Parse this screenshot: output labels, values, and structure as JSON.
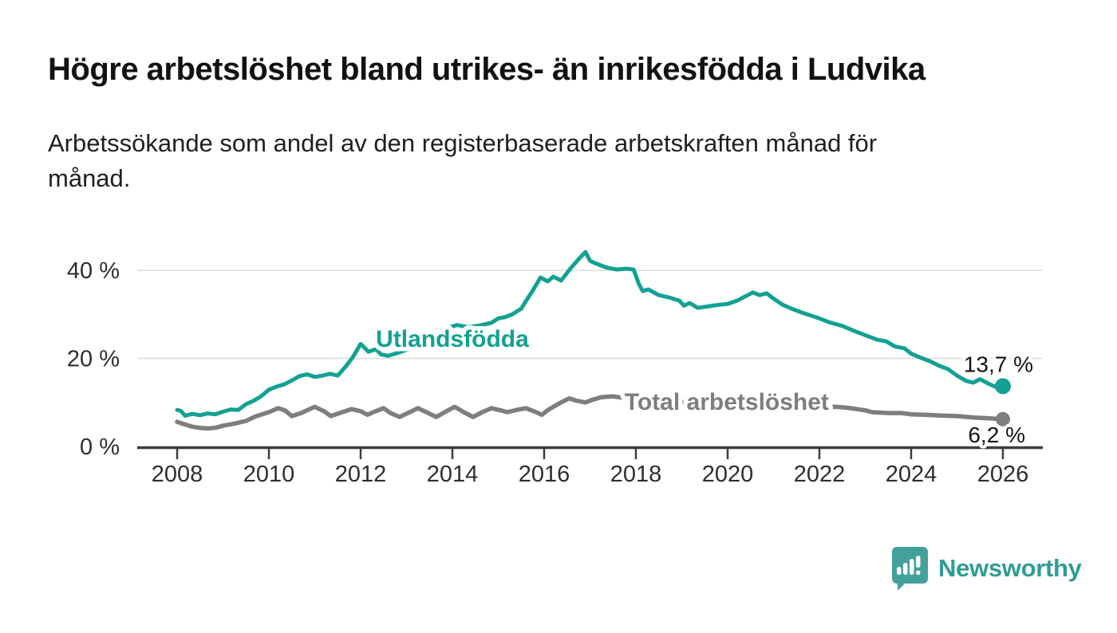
{
  "header": {
    "title": "Högre arbetslöshet bland utrikes- än inrikesfödda i Ludvika",
    "subtitle_line1": "Arbetssökande som andel av den registerbaserade arbetskraften månad för",
    "subtitle_line2": "månad."
  },
  "branding": {
    "name": "Newsworthy",
    "logo_icon": "newsworthy-speech-bubble-bar-chart-icon",
    "logo_color": "#44a09b",
    "text_color": "#2f9c95"
  },
  "chart_data": {
    "type": "line",
    "title": "Högre arbetslöshet bland utrikes- än inrikesfödda i Ludvika",
    "subtitle": "Arbetssökande som andel av den registerbaserade arbetskraften månad för månad.",
    "grid": "horizontal",
    "gridline_color": "#dcdcdc",
    "axis_color": "#3d3d3d",
    "tick_label_color": "#2e2e2e",
    "x_axis": {
      "range": [
        2007.13,
        2026.87
      ],
      "ticks": [
        2008,
        2010,
        2012,
        2014,
        2016,
        2018,
        2020,
        2022,
        2024,
        2026
      ]
    },
    "y_axis": {
      "range": [
        0,
        45.3
      ],
      "unit": "%",
      "ticks": [
        {
          "value": 0,
          "label": "0 %"
        },
        {
          "value": 20,
          "label": "20 %"
        },
        {
          "value": 40,
          "label": "40 %"
        }
      ]
    },
    "series": [
      {
        "name": "Utlandsfödda",
        "color": "#12a192",
        "stroke_width": 5,
        "label_at": [
          2014.0,
          24.6
        ],
        "end_label": "13,7 %",
        "end_value": 13.7,
        "end_label_side": "above",
        "points": [
          [
            2008.0,
            8.3
          ],
          [
            2008.08,
            8.1
          ],
          [
            2008.17,
            7.0
          ],
          [
            2008.33,
            7.4
          ],
          [
            2008.5,
            7.1
          ],
          [
            2008.67,
            7.5
          ],
          [
            2008.83,
            7.3
          ],
          [
            2009.0,
            7.9
          ],
          [
            2009.17,
            8.4
          ],
          [
            2009.33,
            8.3
          ],
          [
            2009.5,
            9.6
          ],
          [
            2009.67,
            10.4
          ],
          [
            2009.83,
            11.4
          ],
          [
            2010.0,
            12.9
          ],
          [
            2010.17,
            13.6
          ],
          [
            2010.33,
            14.1
          ],
          [
            2010.5,
            15.0
          ],
          [
            2010.67,
            16.0
          ],
          [
            2010.83,
            16.4
          ],
          [
            2011.0,
            15.8
          ],
          [
            2011.17,
            16.1
          ],
          [
            2011.33,
            16.5
          ],
          [
            2011.5,
            16.1
          ],
          [
            2011.67,
            18.1
          ],
          [
            2011.83,
            20.3
          ],
          [
            2012.0,
            23.3
          ],
          [
            2012.17,
            21.5
          ],
          [
            2012.33,
            22.1
          ],
          [
            2012.45,
            20.9
          ],
          [
            2012.6,
            20.6
          ],
          [
            2012.85,
            21.4
          ],
          [
            2013.1,
            22.4
          ],
          [
            2013.35,
            23.6
          ],
          [
            2013.6,
            25.0
          ],
          [
            2013.85,
            26.8
          ],
          [
            2014.1,
            27.6
          ],
          [
            2014.35,
            27.1
          ],
          [
            2014.6,
            27.5
          ],
          [
            2014.85,
            28.1
          ],
          [
            2015.0,
            29.1
          ],
          [
            2015.15,
            29.4
          ],
          [
            2015.3,
            30.0
          ],
          [
            2015.5,
            31.3
          ],
          [
            2015.6,
            33.0
          ],
          [
            2015.75,
            35.4
          ],
          [
            2015.92,
            38.4
          ],
          [
            2016.08,
            37.5
          ],
          [
            2016.2,
            38.6
          ],
          [
            2016.37,
            37.7
          ],
          [
            2016.57,
            40.4
          ],
          [
            2016.78,
            42.9
          ],
          [
            2016.9,
            44.2
          ],
          [
            2017.0,
            42.2
          ],
          [
            2017.12,
            41.6
          ],
          [
            2017.35,
            40.7
          ],
          [
            2017.58,
            40.2
          ],
          [
            2017.8,
            40.4
          ],
          [
            2017.95,
            40.2
          ],
          [
            2018.07,
            36.8
          ],
          [
            2018.15,
            35.3
          ],
          [
            2018.27,
            35.7
          ],
          [
            2018.5,
            34.4
          ],
          [
            2018.75,
            33.8
          ],
          [
            2018.95,
            33.1
          ],
          [
            2019.05,
            32.0
          ],
          [
            2019.17,
            32.6
          ],
          [
            2019.35,
            31.5
          ],
          [
            2019.55,
            31.8
          ],
          [
            2019.75,
            32.1
          ],
          [
            2020.0,
            32.4
          ],
          [
            2020.2,
            33.1
          ],
          [
            2020.4,
            34.2
          ],
          [
            2020.55,
            35.0
          ],
          [
            2020.7,
            34.4
          ],
          [
            2020.85,
            34.8
          ],
          [
            2021.0,
            33.6
          ],
          [
            2021.2,
            32.2
          ],
          [
            2021.4,
            31.3
          ],
          [
            2021.6,
            30.5
          ],
          [
            2021.8,
            29.8
          ],
          [
            2022.0,
            29.1
          ],
          [
            2022.25,
            28.1
          ],
          [
            2022.5,
            27.4
          ],
          [
            2022.75,
            26.3
          ],
          [
            2023.0,
            25.3
          ],
          [
            2023.25,
            24.3
          ],
          [
            2023.45,
            23.9
          ],
          [
            2023.65,
            22.7
          ],
          [
            2023.85,
            22.3
          ],
          [
            2024.0,
            21.1
          ],
          [
            2024.2,
            20.2
          ],
          [
            2024.4,
            19.4
          ],
          [
            2024.6,
            18.4
          ],
          [
            2024.8,
            17.6
          ],
          [
            2025.0,
            16.1
          ],
          [
            2025.2,
            14.9
          ],
          [
            2025.35,
            14.5
          ],
          [
            2025.5,
            15.3
          ],
          [
            2025.7,
            14.2
          ],
          [
            2025.85,
            13.5
          ],
          [
            2026.0,
            13.7
          ]
        ]
      },
      {
        "name": "Total arbetslöshet",
        "color": "#7e7e7e",
        "stroke_width": 5.5,
        "label_at": [
          2019.98,
          10.3
        ],
        "end_label": "6,2 %",
        "end_value": 6.2,
        "end_label_side": "below",
        "points": [
          [
            2008.0,
            5.6
          ],
          [
            2008.17,
            5.0
          ],
          [
            2008.33,
            4.5
          ],
          [
            2008.5,
            4.2
          ],
          [
            2008.7,
            4.1
          ],
          [
            2008.85,
            4.3
          ],
          [
            2009.0,
            4.7
          ],
          [
            2009.25,
            5.2
          ],
          [
            2009.5,
            5.8
          ],
          [
            2009.7,
            6.8
          ],
          [
            2010.0,
            7.8
          ],
          [
            2010.2,
            8.7
          ],
          [
            2010.35,
            8.2
          ],
          [
            2010.5,
            6.9
          ],
          [
            2010.7,
            7.6
          ],
          [
            2011.0,
            9.0
          ],
          [
            2011.2,
            8.0
          ],
          [
            2011.35,
            6.9
          ],
          [
            2011.6,
            7.8
          ],
          [
            2011.8,
            8.5
          ],
          [
            2012.0,
            8.0
          ],
          [
            2012.15,
            7.2
          ],
          [
            2012.3,
            7.9
          ],
          [
            2012.5,
            8.7
          ],
          [
            2012.65,
            7.6
          ],
          [
            2012.85,
            6.7
          ],
          [
            2013.05,
            7.7
          ],
          [
            2013.25,
            8.7
          ],
          [
            2013.45,
            7.7
          ],
          [
            2013.65,
            6.7
          ],
          [
            2013.85,
            7.9
          ],
          [
            2014.05,
            9.0
          ],
          [
            2014.25,
            7.8
          ],
          [
            2014.45,
            6.7
          ],
          [
            2014.65,
            7.8
          ],
          [
            2014.85,
            8.7
          ],
          [
            2015.05,
            8.2
          ],
          [
            2015.2,
            7.8
          ],
          [
            2015.4,
            8.3
          ],
          [
            2015.6,
            8.7
          ],
          [
            2015.8,
            7.9
          ],
          [
            2015.95,
            7.2
          ],
          [
            2016.1,
            8.4
          ],
          [
            2016.3,
            9.6
          ],
          [
            2016.42,
            10.3
          ],
          [
            2016.55,
            10.9
          ],
          [
            2016.7,
            10.4
          ],
          [
            2016.9,
            10.0
          ],
          [
            2017.05,
            10.6
          ],
          [
            2017.25,
            11.2
          ],
          [
            2017.5,
            11.4
          ],
          [
            2017.75,
            11.0
          ],
          [
            2018.0,
            10.8
          ],
          [
            2018.4,
            10.2
          ],
          [
            2018.8,
            10.5
          ],
          [
            2019.2,
            9.8
          ],
          [
            2019.6,
            10.0
          ],
          [
            2020.0,
            9.6
          ],
          [
            2020.4,
            10.2
          ],
          [
            2020.8,
            9.9
          ],
          [
            2021.2,
            9.5
          ],
          [
            2021.6,
            9.2
          ],
          [
            2022.0,
            8.9
          ],
          [
            2022.35,
            9.0
          ],
          [
            2022.6,
            8.8
          ],
          [
            2023.0,
            8.2
          ],
          [
            2023.15,
            7.8
          ],
          [
            2023.5,
            7.6
          ],
          [
            2023.8,
            7.6
          ],
          [
            2024.0,
            7.3
          ],
          [
            2024.3,
            7.2
          ],
          [
            2024.7,
            7.0
          ],
          [
            2025.0,
            6.9
          ],
          [
            2025.35,
            6.6
          ],
          [
            2025.7,
            6.4
          ],
          [
            2026.0,
            6.2
          ]
        ]
      }
    ]
  }
}
